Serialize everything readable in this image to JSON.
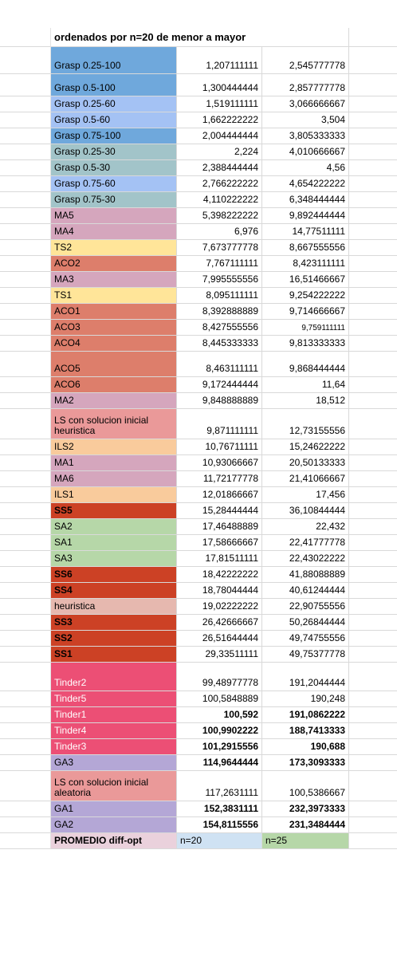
{
  "title": "ordenados por n=20 de menor a mayor",
  "rows": [
    {
      "name": "Grasp 0.25-100",
      "n20": "1,207111111",
      "n25": "2,545777778",
      "color": "#6fa8dc",
      "h": 34
    },
    {
      "name": "Grasp 0.5-100",
      "n20": "1,300444444",
      "n25": "2,857777778",
      "color": "#6fa8dc",
      "h": 28
    },
    {
      "name": "Grasp 0.25-60",
      "n20": "1,519111111",
      "n25": "3,066666667",
      "color": "#a4c2f4",
      "h": 20
    },
    {
      "name": "Grasp 0.5-60",
      "n20": "1,662222222",
      "n25": "3,504",
      "color": "#a4c2f4",
      "h": 20
    },
    {
      "name": "Grasp 0.75-100",
      "n20": "2,004444444",
      "n25": "3,805333333",
      "color": "#6fa8dc",
      "h": 20
    },
    {
      "name": "Grasp 0.25-30",
      "n20": "2,224",
      "n25": "4,010666667",
      "color": "#a2c4c9",
      "h": 20
    },
    {
      "name": "Grasp 0.5-30",
      "n20": "2,388444444",
      "n25": "4,56",
      "color": "#a2c4c9",
      "h": 20
    },
    {
      "name": "Grasp 0.75-60",
      "n20": "2,766222222",
      "n25": "4,654222222",
      "color": "#a4c2f4",
      "h": 20
    },
    {
      "name": "Grasp 0.75-30",
      "n20": "4,110222222",
      "n25": "6,348444444",
      "color": "#a2c4c9",
      "h": 20
    },
    {
      "name": "MA5",
      "n20": "5,398222222",
      "n25": "9,892444444",
      "color": "#d5a6bd",
      "h": 20
    },
    {
      "name": "MA4",
      "n20": "6,976",
      "n25": "14,77511111",
      "color": "#d5a6bd",
      "h": 20
    },
    {
      "name": "TS2",
      "n20": "7,673777778",
      "n25": "8,667555556",
      "color": "#ffe599",
      "h": 20
    },
    {
      "name": "ACO2",
      "n20": "7,767111111",
      "n25": "8,423111111",
      "color": "#dd7e6b",
      "h": 20
    },
    {
      "name": "MA3",
      "n20": "7,995555556",
      "n25": "16,51466667",
      "color": "#d5a6bd",
      "h": 20
    },
    {
      "name": "TS1",
      "n20": "8,095111111",
      "n25": "9,254222222",
      "color": "#ffe599",
      "h": 20
    },
    {
      "name": "ACO1",
      "n20": "8,392888889",
      "n25": "9,714666667",
      "color": "#dd7e6b",
      "h": 20
    },
    {
      "name": "ACO3",
      "n20": "8,427555556",
      "n25": "9,759111111",
      "color": "#dd7e6b",
      "h": 20,
      "small25": true
    },
    {
      "name": "ACO4",
      "n20": "8,445333333",
      "n25": "9,813333333",
      "color": "#dd7e6b",
      "h": 20
    },
    {
      "name": "ACO5",
      "n20": "8,463111111",
      "n25": "9,868444444",
      "color": "#dd7e6b",
      "h": 32
    },
    {
      "name": "ACO6",
      "n20": "9,172444444",
      "n25": "11,64",
      "color": "#dd7e6b",
      "h": 20
    },
    {
      "name": "MA2",
      "n20": "9,848888889",
      "n25": "18,512",
      "color": "#d5a6bd",
      "h": 20
    },
    {
      "name": "LS con solucion inicial heuristica",
      "n20": "9,871111111",
      "n25": "12,73155556",
      "color": "#ea9999",
      "h": 38
    },
    {
      "name": "ILS2",
      "n20": "10,76711111",
      "n25": "15,24622222",
      "color": "#f9cb9c",
      "h": 20
    },
    {
      "name": "MA1",
      "n20": "10,93066667",
      "n25": "20,50133333",
      "color": "#d5a6bd",
      "h": 20
    },
    {
      "name": "MA6",
      "n20": "11,72177778",
      "n25": "21,41066667",
      "color": "#d5a6bd",
      "h": 20
    },
    {
      "name": "ILS1",
      "n20": "12,01866667",
      "n25": "17,456",
      "color": "#f9cb9c",
      "h": 20
    },
    {
      "name": "SS5",
      "n20": "15,28444444",
      "n25": "36,10844444",
      "color": "#cc4125",
      "h": 20,
      "bold": true
    },
    {
      "name": "SA2",
      "n20": "17,46488889",
      "n25": "22,432",
      "color": "#b6d7a8",
      "h": 20
    },
    {
      "name": "SA1",
      "n20": "17,58666667",
      "n25": "22,41777778",
      "color": "#b6d7a8",
      "h": 20
    },
    {
      "name": "SA3",
      "n20": "17,81511111",
      "n25": "22,43022222",
      "color": "#b6d7a8",
      "h": 20
    },
    {
      "name": "SS6",
      "n20": "18,42222222",
      "n25": "41,88088889",
      "color": "#cc4125",
      "h": 20,
      "bold": true
    },
    {
      "name": "SS4",
      "n20": "18,78044444",
      "n25": "40,61244444",
      "color": "#cc4125",
      "h": 20,
      "bold": true
    },
    {
      "name": "heuristica",
      "n20": "19,02222222",
      "n25": "22,90755556",
      "color": "#e6b8af",
      "h": 20
    },
    {
      "name": "SS3",
      "n20": "26,42666667",
      "n25": "50,26844444",
      "color": "#cc4125",
      "h": 20,
      "bold": true
    },
    {
      "name": "SS2",
      "n20": "26,51644444",
      "n25": "49,74755556",
      "color": "#cc4125",
      "h": 20,
      "bold": true
    },
    {
      "name": "SS1",
      "n20": "29,33511111",
      "n25": "49,75377778",
      "color": "#cc4125",
      "h": 20,
      "bold": true
    },
    {
      "name": "Tinder2",
      "n20": "99,48977778",
      "n25": "191,2044444",
      "color": "#ec4f75",
      "h": 36,
      "white": true
    },
    {
      "name": "Tinder5",
      "n20": "100,5848889",
      "n25": "190,248",
      "color": "#ec4f75",
      "h": 20,
      "white": true
    },
    {
      "name": "Tinder1",
      "n20": "100,592",
      "n25": "191,0862222",
      "color": "#ec4f75",
      "h": 20,
      "white": true,
      "boldNums": true
    },
    {
      "name": "Tinder4",
      "n20": "100,9902222",
      "n25": "188,7413333",
      "color": "#ec4f75",
      "h": 20,
      "white": true,
      "boldNums": true
    },
    {
      "name": "Tinder3",
      "n20": "101,2915556",
      "n25": "190,688",
      "color": "#ec4f75",
      "h": 20,
      "white": true,
      "boldNums": true
    },
    {
      "name": "GA3",
      "n20": "114,9644444",
      "n25": "173,3093333",
      "color": "#b4a7d6",
      "h": 20,
      "boldNums": true
    },
    {
      "name": "LS con solucion inicial aleatoria",
      "n20": "117,2631111",
      "n25": "100,5386667",
      "color": "#ea9999",
      "h": 38
    },
    {
      "name": "GA1",
      "n20": "152,3831111",
      "n25": "232,3973333",
      "color": "#b4a7d6",
      "h": 20,
      "boldNums": true
    },
    {
      "name": "GA2",
      "n20": "154,8115556",
      "n25": "231,3484444",
      "color": "#b4a7d6",
      "h": 20,
      "boldNums": true
    }
  ],
  "footer": {
    "label": "PROMEDIO diff-opt",
    "label_color": "#ead1dc",
    "n20": "n=20",
    "n20_color": "#cfe2f3",
    "n25": "n=25",
    "n25_color": "#b6d7a8"
  }
}
